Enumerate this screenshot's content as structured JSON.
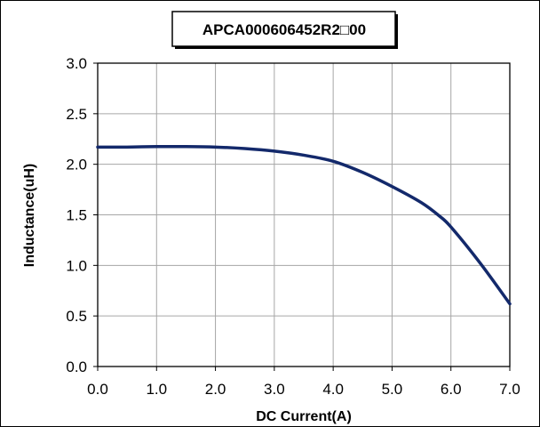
{
  "chart_data": {
    "type": "line",
    "title": "APCA000606452R2□00",
    "xlabel": "DC Current(A)",
    "ylabel": "Inductance(uH)",
    "xlim": [
      0,
      7
    ],
    "ylim": [
      0,
      3
    ],
    "xticks": [
      "0.0",
      "1.0",
      "2.0",
      "3.0",
      "4.0",
      "5.0",
      "6.0",
      "7.0"
    ],
    "yticks": [
      "0.0",
      "0.5",
      "1.0",
      "1.5",
      "2.0",
      "2.5",
      "3.0"
    ],
    "grid": true,
    "legend": "none",
    "series": [
      {
        "color": "#13296b",
        "x": [
          0.0,
          0.5,
          1.0,
          1.5,
          2.0,
          2.5,
          3.0,
          3.5,
          4.0,
          4.5,
          5.0,
          5.5,
          5.8,
          6.0,
          6.5,
          7.0
        ],
        "y": [
          2.17,
          2.17,
          2.175,
          2.175,
          2.17,
          2.155,
          2.13,
          2.09,
          2.03,
          1.92,
          1.78,
          1.62,
          1.49,
          1.38,
          1.02,
          0.62
        ]
      }
    ]
  }
}
